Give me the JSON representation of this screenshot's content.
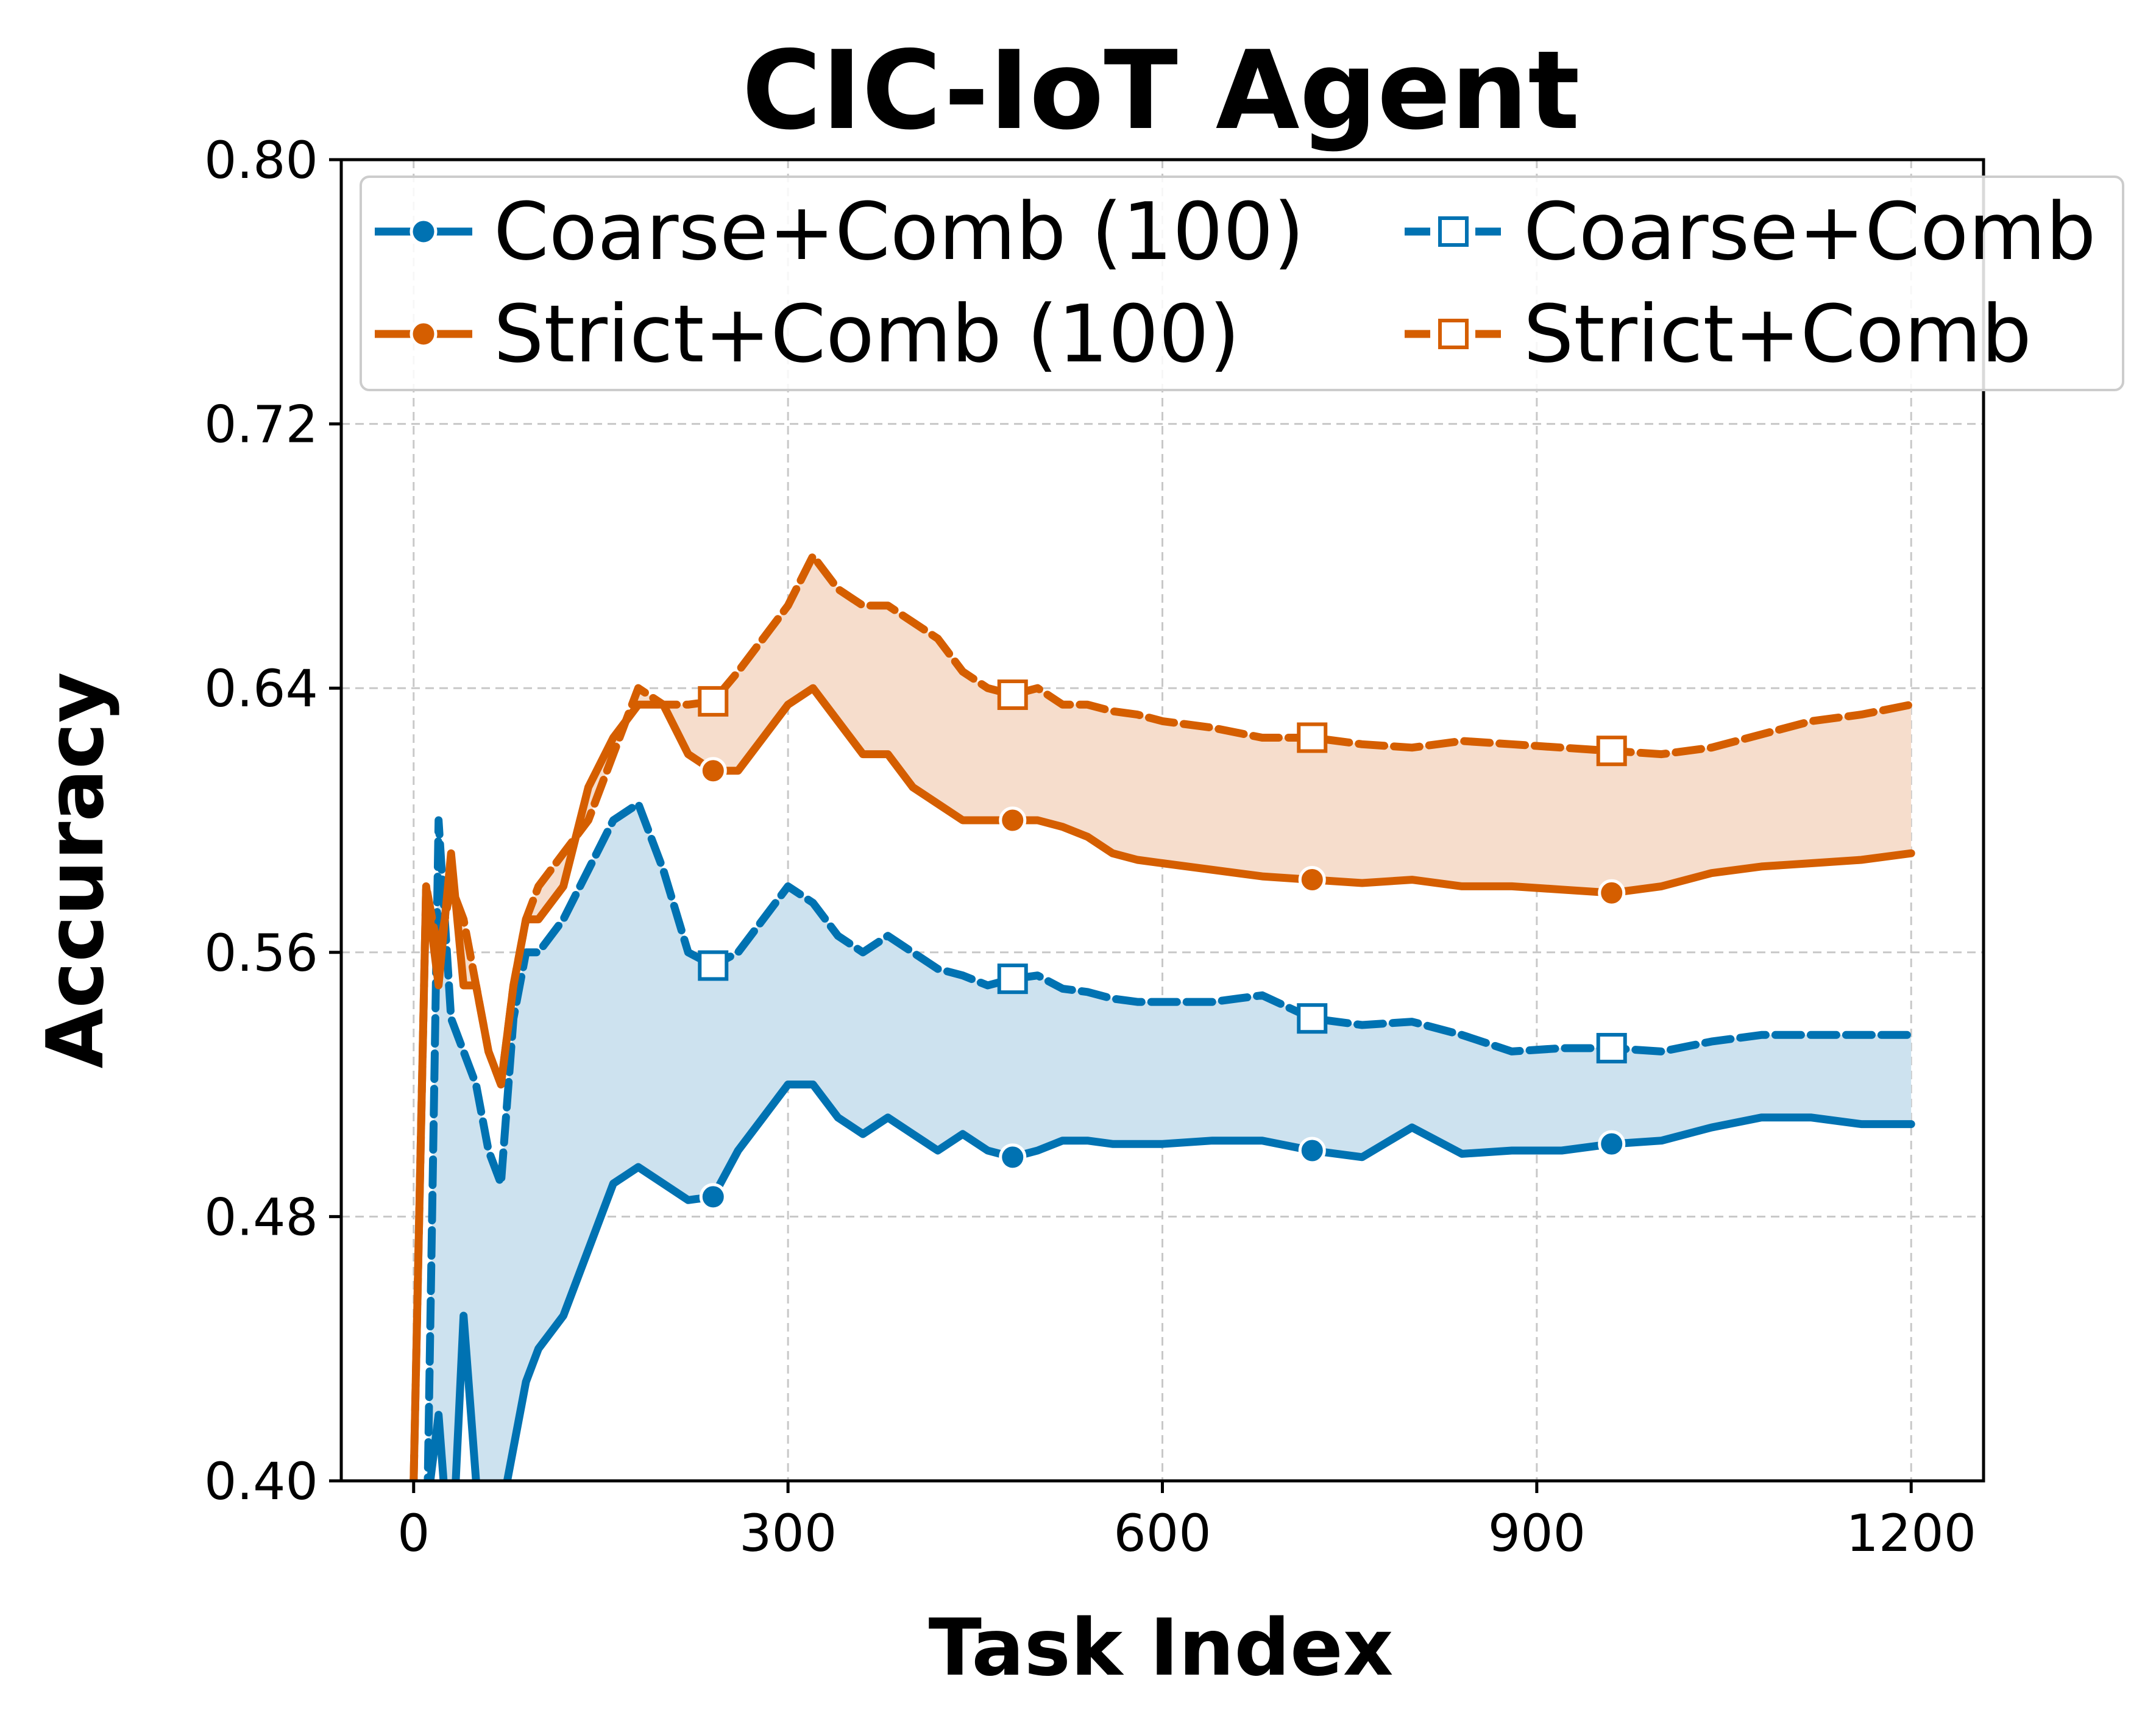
{
  "chart_data": {
    "type": "line",
    "title": "CIC-IoT Agent",
    "xlabel": "Task Index",
    "ylabel": "Accuracy",
    "xlim": [
      -58,
      1258
    ],
    "ylim": [
      0.4,
      0.8
    ],
    "xticks": [
      0,
      300,
      600,
      900,
      1200
    ],
    "xtick_labels": [
      "0",
      "300",
      "600",
      "900",
      "1200"
    ],
    "yticks": [
      0.4,
      0.48,
      0.56,
      0.64,
      0.72,
      0.8
    ],
    "ytick_labels": [
      "0.40",
      "0.48",
      "0.56",
      "0.64",
      "0.72",
      "0.80"
    ],
    "grid": true,
    "legend": {
      "placement": "top",
      "columns": 2
    },
    "colors": {
      "blue": "#0072B2",
      "orange": "#D55E00",
      "blue_fill": "#cde2ef",
      "orange_fill": "#f6ddcc",
      "grid": "#c8c8c8"
    },
    "x": [
      0,
      10,
      20,
      30,
      40,
      50,
      60,
      70,
      80,
      90,
      100,
      120,
      140,
      160,
      180,
      200,
      220,
      240,
      260,
      280,
      300,
      320,
      340,
      360,
      380,
      400,
      420,
      440,
      460,
      480,
      500,
      520,
      540,
      560,
      580,
      600,
      640,
      680,
      720,
      760,
      800,
      840,
      880,
      920,
      960,
      1000,
      1040,
      1080,
      1120,
      1160,
      1200
    ],
    "series": [
      {
        "name": "Coarse+Comb (100)",
        "color": "#0072B2",
        "marker": "circle",
        "linestyle": "solid",
        "values": [
          0.4,
          0.39,
          0.42,
          0.37,
          0.45,
          0.4,
          0.39,
          0.39,
          0.41,
          0.43,
          0.44,
          0.45,
          0.47,
          0.49,
          0.495,
          0.49,
          0.485,
          0.486,
          0.5,
          0.51,
          0.52,
          0.52,
          0.51,
          0.505,
          0.51,
          0.505,
          0.5,
          0.505,
          0.5,
          0.498,
          0.5,
          0.503,
          0.503,
          0.502,
          0.502,
          0.502,
          0.503,
          0.503,
          0.5,
          0.498,
          0.507,
          0.499,
          0.5,
          0.5,
          0.502,
          0.503,
          0.507,
          0.51,
          0.51,
          0.508,
          0.508
        ]
      },
      {
        "name": "Strict+Comb (100)",
        "color": "#D55E00",
        "marker": "circle",
        "linestyle": "solid",
        "values": [
          0.4,
          0.58,
          0.55,
          0.59,
          0.55,
          0.55,
          0.53,
          0.52,
          0.55,
          0.57,
          0.57,
          0.58,
          0.61,
          0.625,
          0.635,
          0.635,
          0.62,
          0.615,
          0.615,
          0.625,
          0.635,
          0.64,
          0.63,
          0.62,
          0.62,
          0.61,
          0.605,
          0.6,
          0.6,
          0.6,
          0.6,
          0.598,
          0.595,
          0.59,
          0.588,
          0.587,
          0.585,
          0.583,
          0.582,
          0.581,
          0.582,
          0.58,
          0.58,
          0.579,
          0.578,
          0.58,
          0.584,
          0.586,
          0.587,
          0.588,
          0.59
        ]
      },
      {
        "name": "Coarse+Comb",
        "color": "#0072B2",
        "marker": "square-open",
        "linestyle": "dashed",
        "values": [
          0.4,
          0.37,
          0.6,
          0.54,
          0.53,
          0.52,
          0.5,
          0.49,
          0.54,
          0.56,
          0.56,
          0.57,
          0.585,
          0.6,
          0.605,
          0.585,
          0.56,
          0.556,
          0.56,
          0.57,
          0.58,
          0.575,
          0.565,
          0.56,
          0.565,
          0.56,
          0.555,
          0.553,
          0.55,
          0.552,
          0.553,
          0.549,
          0.548,
          0.546,
          0.545,
          0.545,
          0.545,
          0.547,
          0.54,
          0.538,
          0.539,
          0.535,
          0.53,
          0.531,
          0.531,
          0.53,
          0.533,
          0.535,
          0.535,
          0.535,
          0.535
        ]
      },
      {
        "name": "Strict+Comb",
        "color": "#D55E00",
        "marker": "square-open",
        "linestyle": "dashed",
        "values": [
          0.4,
          0.58,
          0.56,
          0.58,
          0.57,
          0.55,
          0.53,
          0.52,
          0.55,
          0.57,
          0.58,
          0.59,
          0.6,
          0.62,
          0.64,
          0.635,
          0.635,
          0.636,
          0.645,
          0.655,
          0.665,
          0.68,
          0.67,
          0.665,
          0.665,
          0.66,
          0.655,
          0.645,
          0.64,
          0.638,
          0.64,
          0.635,
          0.635,
          0.633,
          0.632,
          0.63,
          0.628,
          0.625,
          0.625,
          0.623,
          0.622,
          0.624,
          0.623,
          0.622,
          0.621,
          0.62,
          0.622,
          0.626,
          0.63,
          0.632,
          0.635
        ]
      }
    ],
    "markers_at_x": [
      240,
      480,
      720,
      960
    ],
    "shaded_bands": [
      {
        "between": [
          "Coarse+Comb (100)",
          "Coarse+Comb"
        ],
        "color": "#cde2ef"
      },
      {
        "between": [
          "Strict+Comb (100)",
          "Strict+Comb"
        ],
        "color": "#f6ddcc"
      }
    ]
  }
}
